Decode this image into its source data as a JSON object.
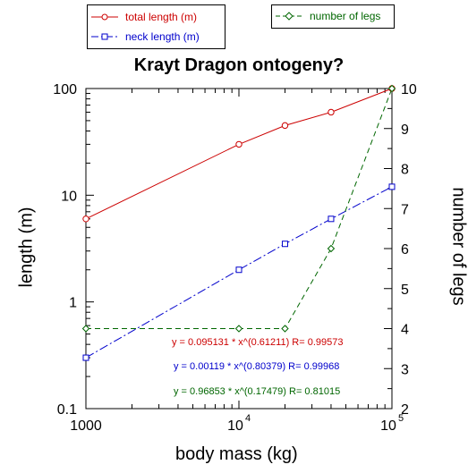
{
  "chart_data": {
    "type": "line",
    "title": "Krayt Dragon ontogeny?",
    "xlabel": "body mass (kg)",
    "ylabel_left": "length (m)",
    "ylabel_right": "number of legs",
    "x_scale": "log",
    "y_left_scale": "log",
    "y_right_scale": "linear",
    "xlim": [
      1000,
      100000
    ],
    "ylim_left": [
      0.1,
      100
    ],
    "ylim_right": [
      2,
      10
    ],
    "x_tick_labels": [
      "1000",
      "10",
      "4",
      "10",
      "5"
    ],
    "y_left_tick_labels": [
      "0.1",
      "1",
      "10",
      "100"
    ],
    "y_right_tick_labels": [
      "2",
      "3",
      "4",
      "5",
      "6",
      "7",
      "8",
      "9",
      "10"
    ],
    "grid": false,
    "series": [
      {
        "name": "total length (m)",
        "axis": "left",
        "color": "#cc0000",
        "marker": "circle",
        "line": "solid",
        "x": [
          1000,
          10000,
          20000,
          40000,
          100000
        ],
        "y": [
          6,
          30,
          45,
          60,
          100
        ]
      },
      {
        "name": "neck length (m)",
        "axis": "left",
        "color": "#0000cc",
        "marker": "square",
        "line": "dashdot",
        "x": [
          1000,
          10000,
          20000,
          40000,
          100000
        ],
        "y": [
          0.3,
          2,
          3.5,
          6,
          12
        ]
      },
      {
        "name": "number of legs",
        "axis": "right",
        "color": "#006600",
        "marker": "diamond",
        "line": "dashed",
        "x": [
          1000,
          10000,
          20000,
          40000,
          100000
        ],
        "y": [
          4,
          4,
          4,
          6,
          10
        ]
      }
    ],
    "annotations": [
      {
        "text": "y = 0.095131 * x^(0.61211)   R= 0.99573",
        "color": "#cc0000"
      },
      {
        "text": "y = 0.00119 * x^(0.80379)   R= 0.99968",
        "color": "#0000cc"
      },
      {
        "text": "y = 0.96853 * x^(0.17479)   R= 0.81015",
        "color": "#006600"
      }
    ]
  }
}
